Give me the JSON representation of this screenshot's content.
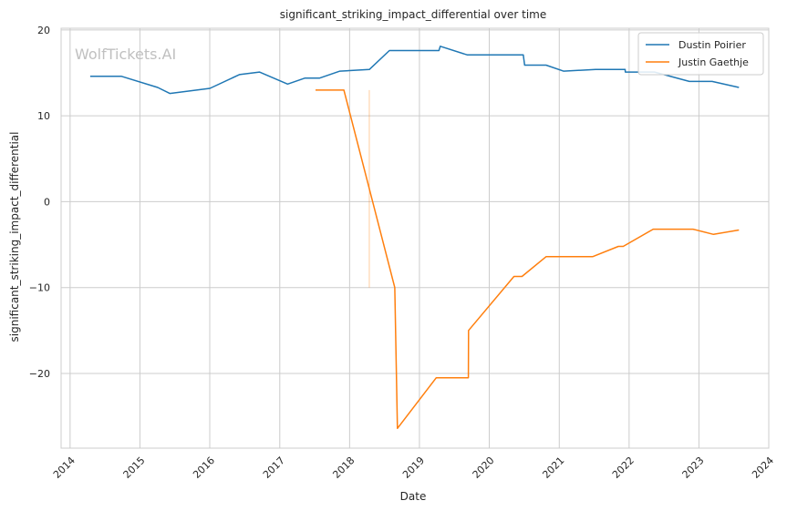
{
  "chart_data": {
    "type": "line",
    "title": "significant_striking_impact_differential over time",
    "xlabel": "Date",
    "ylabel": "significant_striking_impact_differential",
    "watermark": "WolfTickets.AI",
    "x_ticks": [
      "2014",
      "2015",
      "2016",
      "2017",
      "2018",
      "2019",
      "2020",
      "2021",
      "2022",
      "2023",
      "2024"
    ],
    "y_ticks": [
      20,
      10,
      0,
      -10,
      -20
    ],
    "y_tick_labels": [
      "20",
      "10",
      "0",
      "−10",
      "−20"
    ],
    "xlim": [
      "2013-11-15",
      "2024-01-01"
    ],
    "ylim": [
      -28.7,
      20.2
    ],
    "grid": true,
    "legend_position": "top-right",
    "series": [
      {
        "name": "Dustin Poirier",
        "color": "#1f77b4",
        "points": [
          [
            "2014-04-16",
            14.6
          ],
          [
            "2014-09-27",
            14.6
          ],
          [
            "2015-04-04",
            13.3
          ],
          [
            "2015-06-06",
            12.6
          ],
          [
            "2016-01-02",
            13.2
          ],
          [
            "2016-06-04",
            14.8
          ],
          [
            "2016-09-17",
            15.1
          ],
          [
            "2017-02-11",
            13.7
          ],
          [
            "2017-05-13",
            14.4
          ],
          [
            "2017-07-29",
            14.4
          ],
          [
            "2017-11-11",
            15.2
          ],
          [
            "2018-04-14",
            15.4
          ],
          [
            "2018-07-28",
            17.6
          ],
          [
            "2019-04-13",
            17.6
          ],
          [
            "2019-04-20",
            18.1
          ],
          [
            "2019-09-07",
            17.1
          ],
          [
            "2020-06-27",
            17.1
          ],
          [
            "2020-07-04",
            15.9
          ],
          [
            "2020-10-24",
            15.9
          ],
          [
            "2021-01-23",
            15.2
          ],
          [
            "2021-07-10",
            15.4
          ],
          [
            "2021-12-11",
            15.4
          ],
          [
            "2021-12-12",
            15.1
          ],
          [
            "2022-05-14",
            15.1
          ],
          [
            "2022-11-12",
            14.0
          ],
          [
            "2023-03-11",
            14.0
          ],
          [
            "2023-07-29",
            13.3
          ]
        ]
      },
      {
        "name": "Justin Gaethje",
        "color": "#ff7f0e",
        "points": [
          [
            "2017-07-07",
            13.0
          ],
          [
            "2017-12-02",
            13.0
          ],
          [
            "2018-04-14",
            1.5
          ],
          [
            "2018-08-25",
            -10.0
          ],
          [
            "2018-09-08",
            -26.4
          ],
          [
            "2019-03-30",
            -20.5
          ],
          [
            "2019-09-14",
            -20.5
          ],
          [
            "2019-09-15",
            -15.0
          ],
          [
            "2020-05-09",
            -8.7
          ],
          [
            "2020-06-20",
            -8.7
          ],
          [
            "2020-10-24",
            -6.4
          ],
          [
            "2021-06-24",
            -6.4
          ],
          [
            "2021-11-06",
            -5.2
          ],
          [
            "2021-12-01",
            -5.2
          ],
          [
            "2022-05-07",
            -3.2
          ],
          [
            "2022-12-01",
            -3.2
          ],
          [
            "2023-03-18",
            -3.8
          ],
          [
            "2023-07-29",
            -3.3
          ]
        ]
      }
    ],
    "annotations": [
      {
        "type": "vline",
        "x": "2018-04-14",
        "y_from": 13.0,
        "y_to": -10.0,
        "color": "#ff7f0e",
        "opacity": 0.4
      }
    ]
  }
}
